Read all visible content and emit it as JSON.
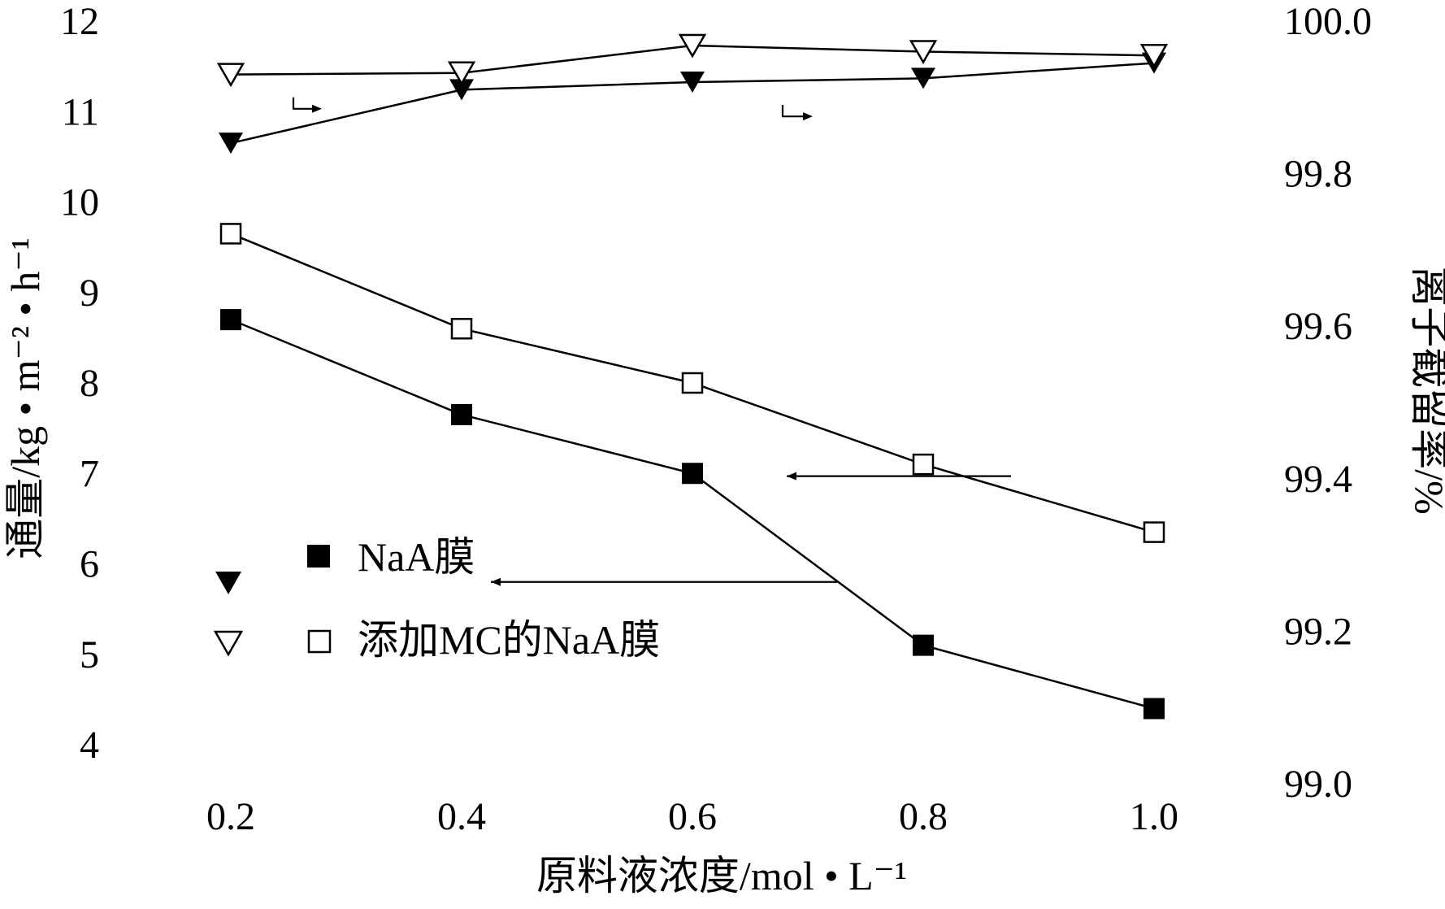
{
  "chart_data": {
    "type": "line",
    "xlabel": "原料液浓度/mol • L⁻¹",
    "ylabel_left": "通量/kg • m⁻² • h⁻¹",
    "ylabel_right": "离子截留率/%",
    "x_ticks": [
      "0.2",
      "0.4",
      "0.6",
      "0.8",
      "1.0"
    ],
    "x": [
      0.2,
      0.4,
      0.6,
      0.8,
      1.0
    ],
    "xlim": [
      0.2,
      1.0
    ],
    "ylim_left": [
      4,
      12
    ],
    "ylim_right": [
      99.0,
      100.0
    ],
    "y_ticks_left": [
      "4",
      "5",
      "6",
      "7",
      "8",
      "9",
      "10",
      "11",
      "12"
    ],
    "y_ticks_right": [
      "99.0",
      "99.2",
      "99.4",
      "99.6",
      "99.8",
      "100.0"
    ],
    "grid": false,
    "legend_position": "center-left",
    "legend": [
      {
        "label": "NaA膜",
        "symbols": [
          "filled-triangle-down",
          "filled-square"
        ]
      },
      {
        "label": "添加MC的NaA膜",
        "symbols": [
          "open-triangle-down",
          "open-square"
        ]
      }
    ],
    "series": [
      {
        "axis": "left",
        "marker": "filled-square",
        "values": [
          8.7,
          7.65,
          7.0,
          5.1,
          4.4
        ]
      },
      {
        "axis": "left",
        "marker": "open-square",
        "values": [
          9.65,
          8.6,
          8.0,
          7.1,
          6.35
        ]
      },
      {
        "axis": "right",
        "marker": "filled-triangle-down",
        "values": [
          99.84,
          99.91,
          99.92,
          99.925,
          99.945
        ]
      },
      {
        "axis": "right",
        "marker": "open-triangle-down",
        "values": [
          99.93,
          99.932,
          99.968,
          99.96,
          99.955
        ]
      }
    ],
    "annotations": [
      {
        "type": "arrow",
        "direction": "left",
        "points_to": "left-axis"
      },
      {
        "type": "arrow",
        "direction": "right",
        "points_to": "right-axis"
      }
    ]
  }
}
